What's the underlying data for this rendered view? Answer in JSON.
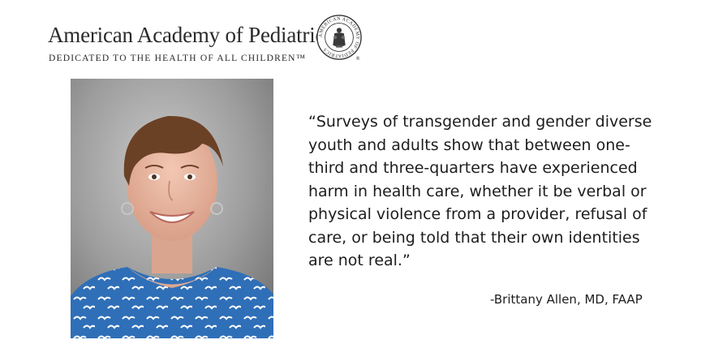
{
  "header": {
    "org_name": "American Academy of Pediatrics",
    "tagline": "DEDICATED TO THE HEALTH OF ALL CHILDREN™"
  },
  "seal": {
    "text": "AMERICAN ACADEMY OF PEDIATRICS",
    "registered_mark": "®"
  },
  "quote": {
    "text": "“Surveys of transgender and gender diverse\nyouth and adults show that between one-\nthird and three-quarters have experienced\nharm in health care, whether it be verbal or\nphysical violence from a provider, refusal of\ncare, or being told that their own identities\nare not real.”",
    "attribution": "-Brittany Allen, MD, FAAP"
  },
  "colors": {
    "text": "#1d1d1d",
    "background": "#ffffff",
    "shirt": "#2f6fb8"
  }
}
